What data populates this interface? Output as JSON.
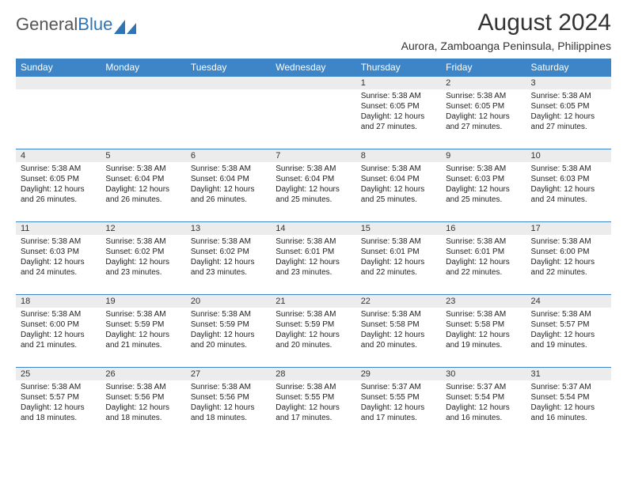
{
  "logo": {
    "text1": "General",
    "text2": "Blue"
  },
  "header": {
    "month_title": "August 2024",
    "location": "Aurora, Zamboanga Peninsula, Philippines"
  },
  "colors": {
    "header_bg": "#3d85c6",
    "header_fg": "#ffffff",
    "daynum_bg": "#ececec",
    "border": "#3d85c6",
    "logo_blue": "#2f75b5"
  },
  "weekdays": [
    "Sunday",
    "Monday",
    "Tuesday",
    "Wednesday",
    "Thursday",
    "Friday",
    "Saturday"
  ],
  "weeks": [
    [
      null,
      null,
      null,
      null,
      {
        "n": "1",
        "sr": "5:38 AM",
        "ss": "6:05 PM",
        "dl": "12 hours and 27 minutes."
      },
      {
        "n": "2",
        "sr": "5:38 AM",
        "ss": "6:05 PM",
        "dl": "12 hours and 27 minutes."
      },
      {
        "n": "3",
        "sr": "5:38 AM",
        "ss": "6:05 PM",
        "dl": "12 hours and 27 minutes."
      }
    ],
    [
      {
        "n": "4",
        "sr": "5:38 AM",
        "ss": "6:05 PM",
        "dl": "12 hours and 26 minutes."
      },
      {
        "n": "5",
        "sr": "5:38 AM",
        "ss": "6:04 PM",
        "dl": "12 hours and 26 minutes."
      },
      {
        "n": "6",
        "sr": "5:38 AM",
        "ss": "6:04 PM",
        "dl": "12 hours and 26 minutes."
      },
      {
        "n": "7",
        "sr": "5:38 AM",
        "ss": "6:04 PM",
        "dl": "12 hours and 25 minutes."
      },
      {
        "n": "8",
        "sr": "5:38 AM",
        "ss": "6:04 PM",
        "dl": "12 hours and 25 minutes."
      },
      {
        "n": "9",
        "sr": "5:38 AM",
        "ss": "6:03 PM",
        "dl": "12 hours and 25 minutes."
      },
      {
        "n": "10",
        "sr": "5:38 AM",
        "ss": "6:03 PM",
        "dl": "12 hours and 24 minutes."
      }
    ],
    [
      {
        "n": "11",
        "sr": "5:38 AM",
        "ss": "6:03 PM",
        "dl": "12 hours and 24 minutes."
      },
      {
        "n": "12",
        "sr": "5:38 AM",
        "ss": "6:02 PM",
        "dl": "12 hours and 23 minutes."
      },
      {
        "n": "13",
        "sr": "5:38 AM",
        "ss": "6:02 PM",
        "dl": "12 hours and 23 minutes."
      },
      {
        "n": "14",
        "sr": "5:38 AM",
        "ss": "6:01 PM",
        "dl": "12 hours and 23 minutes."
      },
      {
        "n": "15",
        "sr": "5:38 AM",
        "ss": "6:01 PM",
        "dl": "12 hours and 22 minutes."
      },
      {
        "n": "16",
        "sr": "5:38 AM",
        "ss": "6:01 PM",
        "dl": "12 hours and 22 minutes."
      },
      {
        "n": "17",
        "sr": "5:38 AM",
        "ss": "6:00 PM",
        "dl": "12 hours and 22 minutes."
      }
    ],
    [
      {
        "n": "18",
        "sr": "5:38 AM",
        "ss": "6:00 PM",
        "dl": "12 hours and 21 minutes."
      },
      {
        "n": "19",
        "sr": "5:38 AM",
        "ss": "5:59 PM",
        "dl": "12 hours and 21 minutes."
      },
      {
        "n": "20",
        "sr": "5:38 AM",
        "ss": "5:59 PM",
        "dl": "12 hours and 20 minutes."
      },
      {
        "n": "21",
        "sr": "5:38 AM",
        "ss": "5:59 PM",
        "dl": "12 hours and 20 minutes."
      },
      {
        "n": "22",
        "sr": "5:38 AM",
        "ss": "5:58 PM",
        "dl": "12 hours and 20 minutes."
      },
      {
        "n": "23",
        "sr": "5:38 AM",
        "ss": "5:58 PM",
        "dl": "12 hours and 19 minutes."
      },
      {
        "n": "24",
        "sr": "5:38 AM",
        "ss": "5:57 PM",
        "dl": "12 hours and 19 minutes."
      }
    ],
    [
      {
        "n": "25",
        "sr": "5:38 AM",
        "ss": "5:57 PM",
        "dl": "12 hours and 18 minutes."
      },
      {
        "n": "26",
        "sr": "5:38 AM",
        "ss": "5:56 PM",
        "dl": "12 hours and 18 minutes."
      },
      {
        "n": "27",
        "sr": "5:38 AM",
        "ss": "5:56 PM",
        "dl": "12 hours and 18 minutes."
      },
      {
        "n": "28",
        "sr": "5:38 AM",
        "ss": "5:55 PM",
        "dl": "12 hours and 17 minutes."
      },
      {
        "n": "29",
        "sr": "5:37 AM",
        "ss": "5:55 PM",
        "dl": "12 hours and 17 minutes."
      },
      {
        "n": "30",
        "sr": "5:37 AM",
        "ss": "5:54 PM",
        "dl": "12 hours and 16 minutes."
      },
      {
        "n": "31",
        "sr": "5:37 AM",
        "ss": "5:54 PM",
        "dl": "12 hours and 16 minutes."
      }
    ]
  ],
  "labels": {
    "sunrise": "Sunrise:",
    "sunset": "Sunset:",
    "daylight": "Daylight:"
  }
}
